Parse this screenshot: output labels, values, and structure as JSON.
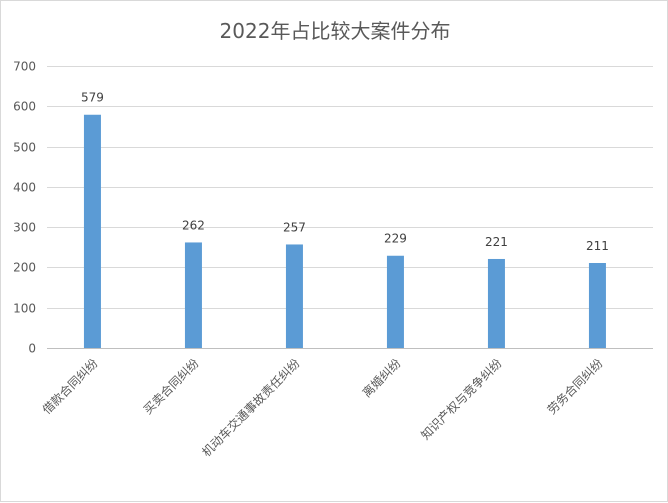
{
  "chart_data": {
    "type": "bar",
    "title": "2022年占比较大案件分布",
    "categories": [
      "借款合同纠纷",
      "买卖合同纠纷",
      "机动车交通事故责任纠纷",
      "离婚纠纷",
      "知识产权与竞争纠纷",
      "劳务合同纠纷"
    ],
    "values": [
      579,
      262,
      257,
      229,
      221,
      211
    ],
    "ylim": [
      0,
      700
    ],
    "ytick_step": 100,
    "grid": true,
    "bar_color": "#5b9bd5",
    "xlabel": "",
    "ylabel": ""
  }
}
